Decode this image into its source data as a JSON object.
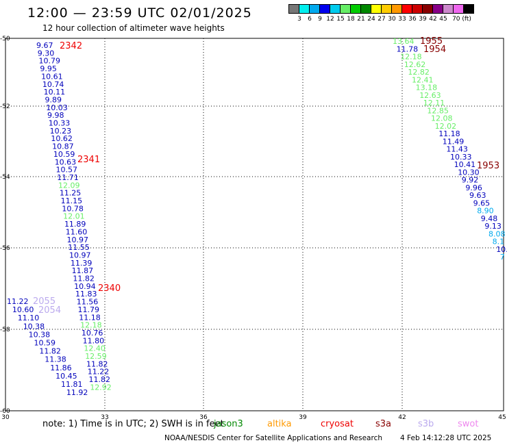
{
  "header": {
    "title": "12:00 — 23:59 UTC 02/01/2025",
    "subtitle": "12 hour collection of altimeter wave heights"
  },
  "legend": {
    "colors": [
      "#777777",
      "#00eeee",
      "#00aaee",
      "#0000ee",
      "#00ccee",
      "#66ee66",
      "#00cc00",
      "#008800",
      "#ffff00",
      "#ffcc00",
      "#ff9900",
      "#ff0000",
      "#cc0000",
      "#880000",
      "#880088",
      "#cc88cc",
      "#ee66ee",
      "#000000"
    ],
    "ticks": [
      "3",
      "6",
      "9",
      "12",
      "15",
      "18",
      "21",
      "24",
      "27",
      "30",
      "33",
      "36",
      "39",
      "42",
      "45",
      "70 (ft)"
    ]
  },
  "map": {
    "x_ticks": [
      "30",
      "33",
      "36",
      "39",
      "42",
      "45"
    ],
    "y_ticks": [
      "-50",
      "-52",
      "-54",
      "-56",
      "-58",
      "-60"
    ],
    "pass_labels": [
      {
        "text": "2342",
        "color": "#ee0000"
      },
      {
        "text": "2341",
        "color": "#ee0000"
      },
      {
        "text": "2340",
        "color": "#ee0000"
      },
      {
        "text": "2055",
        "color": "#bbaaee"
      },
      {
        "text": "2054",
        "color": "#bbaaee"
      },
      {
        "text": "1955",
        "color": "#880000"
      },
      {
        "text": "1954",
        "color": "#880000"
      },
      {
        "text": "1953",
        "color": "#880000"
      }
    ],
    "track_a": [
      "9.67",
      "9.30",
      "10.79",
      "9.95",
      "10.61",
      "10.74",
      "10.11",
      "9.89",
      "10.03",
      "9.98",
      "10.33",
      "10.23",
      "10.62",
      "10.87",
      "10.59",
      "10.63",
      "10.57",
      "11.71",
      "12.09",
      "11.25",
      "11.15",
      "10.78",
      "12.01",
      "11.89",
      "11.60",
      "10.97",
      "11.55",
      "10.97",
      "11.39",
      "11.87",
      "11.82",
      "10.94",
      "11.83",
      "11.56",
      "11.79",
      "11.18",
      "12.18",
      "10.76",
      "11.80",
      "12.40",
      "12.59",
      "11.82",
      "11.22",
      "11.82",
      "12.92"
    ],
    "track_b": [
      "11.22",
      "10.60",
      "11.10",
      "10.38",
      "10.38",
      "10.59",
      "11.82",
      "11.38",
      "11.86",
      "10.45",
      "11.81",
      "11.92"
    ],
    "track_c": [
      "13.64",
      "11.78",
      "12.18",
      "12.62",
      "12.82",
      "12.41",
      "13.18",
      "12.63",
      "12.11",
      "12.85",
      "12.08",
      "12.02",
      "11.18",
      "11.49",
      "11.43",
      "10.33",
      "10.41",
      "10.30",
      "9.92",
      "9.96",
      "9.63",
      "9.65",
      "8.90",
      "9.48",
      "9.13",
      "8.08",
      "8.1",
      "10.",
      "7"
    ]
  },
  "footer": {
    "note": "note:  1) Time is in UTC; 2) SWH is in feet",
    "satellites": [
      {
        "name": "jason3",
        "color": "#008800"
      },
      {
        "name": "altika",
        "color": "#ff9900"
      },
      {
        "name": "cryosat",
        "color": "#ee0000"
      },
      {
        "name": "s3a",
        "color": "#880000"
      },
      {
        "name": "s3b",
        "color": "#bbaaee"
      },
      {
        "name": "swot",
        "color": "#ee88ee"
      }
    ],
    "credit": "NOAA/NESDIS Center for Satellite Applications and Research",
    "timestamp": "4 Feb 14:12:28 UTC 2025"
  }
}
